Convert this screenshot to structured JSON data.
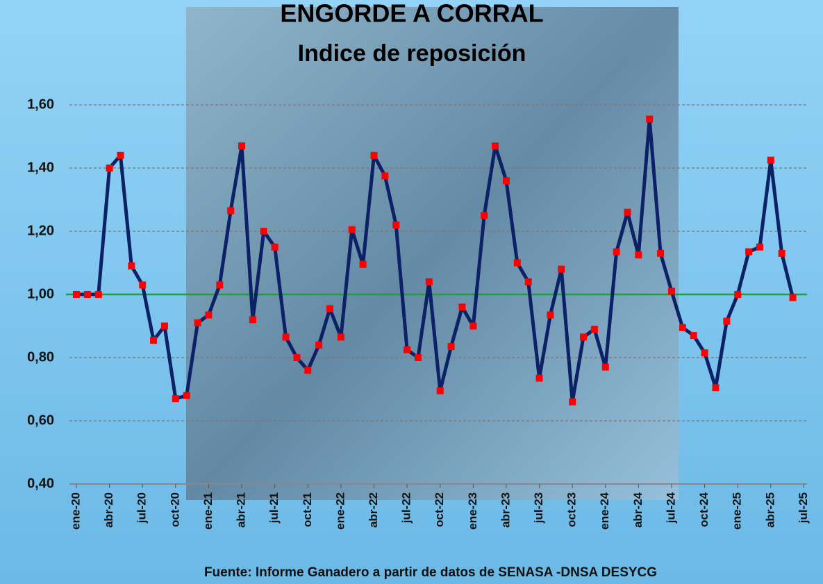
{
  "chart_data": {
    "type": "line",
    "title": "ENGORDE A CORRAL",
    "subtitle": "Indice de reposición",
    "source": "Fuente: Informe Ganadero a partir de datos de SENASA -DNSA DESYCG",
    "categories": [
      "ene-20",
      null,
      null,
      "abr-20",
      null,
      null,
      "jul-20",
      null,
      null,
      "oct-20",
      null,
      null,
      "ene-21",
      null,
      null,
      "abr-21",
      null,
      null,
      "jul-21",
      null,
      null,
      "oct-21",
      null,
      null,
      "ene-22",
      null,
      null,
      "abr-22",
      null,
      null,
      "jul-22",
      null,
      null,
      "oct-22",
      null,
      null,
      "ene-23",
      null,
      null,
      "abr-23",
      null,
      null,
      "jul-23",
      null,
      null,
      "oct-23",
      null,
      null,
      "ene-24",
      null,
      null,
      "abr-24",
      null,
      null,
      "jul-24",
      null,
      null,
      "oct-24",
      null,
      null,
      "ene-25",
      null,
      null,
      "abr-25",
      null,
      null,
      "jul-25"
    ],
    "values": [
      1.0,
      1.0,
      1.0,
      1.4,
      1.44,
      1.09,
      1.03,
      0.855,
      0.9,
      0.67,
      0.68,
      0.91,
      0.935,
      1.03,
      1.265,
      1.47,
      0.92,
      1.2,
      1.15,
      0.865,
      0.8,
      0.76,
      0.84,
      0.955,
      0.865,
      1.205,
      1.095,
      1.44,
      1.375,
      1.22,
      0.825,
      0.8,
      1.04,
      0.695,
      0.835,
      0.96,
      0.9,
      1.25,
      1.47,
      1.36,
      1.1,
      1.04,
      0.735,
      0.935,
      1.08,
      0.66,
      0.865,
      0.89,
      0.77,
      1.135,
      1.26,
      1.125,
      1.555,
      1.13,
      1.01,
      0.895,
      0.87,
      0.815,
      0.705,
      0.915,
      1.0,
      1.135,
      1.15,
      1.425,
      1.13,
      0.99,
      null
    ],
    "color": "#0d2266",
    "marker_color": "#ff0000",
    "reference_line": 1.0,
    "reference_color": "#1fa040",
    "ylim": [
      0.4,
      1.6
    ],
    "yticks": [
      {
        "value": 0.4,
        "label": "0,40"
      },
      {
        "value": 0.6,
        "label": "0,60"
      },
      {
        "value": 0.8,
        "label": "0,80"
      },
      {
        "value": 1.0,
        "label": "1,00"
      },
      {
        "value": 1.2,
        "label": "1,20"
      },
      {
        "value": 1.4,
        "label": "1,40"
      },
      {
        "value": 1.6,
        "label": "1,60"
      }
    ],
    "grid": true
  }
}
